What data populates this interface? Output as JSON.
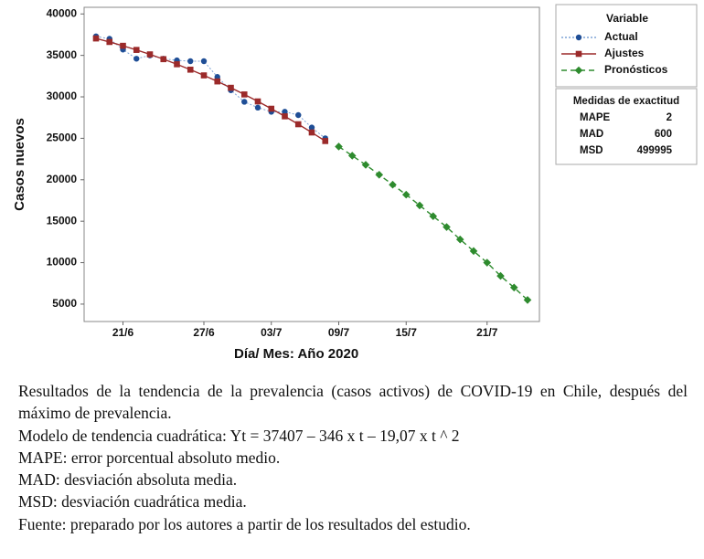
{
  "chart_data": {
    "type": "line",
    "x_label": "Día/ Mes: Año 2020",
    "y_label": "Casos nuevos",
    "categories": [
      null,
      null,
      "21/6",
      null,
      null,
      null,
      null,
      null,
      "27/6",
      null,
      null,
      null,
      null,
      "03/7",
      null,
      null,
      null,
      null,
      "09/7",
      null,
      null,
      null,
      null,
      "15/7",
      null,
      null,
      null,
      null,
      null,
      "21/7",
      null,
      null,
      null
    ],
    "ylim": [
      2900,
      40800
    ],
    "yticks": [
      5000,
      10000,
      15000,
      20000,
      25000,
      30000,
      35000,
      40000
    ],
    "grid": false,
    "legend_title": "Variable",
    "series": [
      {
        "name": "Actual",
        "color": "#1f4e96",
        "marker": "circle",
        "line": "dotted",
        "values": [
          37300,
          37000,
          35700,
          34600,
          35000,
          34600,
          34400,
          34300,
          34300,
          32400,
          30800,
          29400,
          28700,
          28200,
          28200,
          27800,
          26300,
          25000,
          null,
          null,
          null,
          null,
          null,
          null,
          null,
          null,
          null,
          null,
          null,
          null,
          null,
          null,
          null
        ]
      },
      {
        "name": "Ajustes",
        "color": "#9b2a2a",
        "marker": "square",
        "line": "solid",
        "values": [
          37042,
          36619,
          36158,
          35659,
          35124,
          34545,
          33931,
          33279,
          32589,
          31860,
          31094,
          30290,
          29448,
          28568,
          27650,
          26695,
          25702,
          24670,
          null,
          null,
          null,
          null,
          null,
          null,
          null,
          null,
          null,
          null,
          null,
          null,
          null,
          null,
          null
        ]
      },
      {
        "name": "Pronósticos",
        "color": "#2e8b2e",
        "marker": "diamond",
        "line": "dashed",
        "values": [
          null,
          null,
          null,
          null,
          null,
          null,
          null,
          null,
          null,
          null,
          null,
          null,
          null,
          null,
          null,
          null,
          null,
          null,
          24000,
          22900,
          21800,
          20600,
          19400,
          18200,
          16900,
          15600,
          14300,
          12800,
          11400,
          10000,
          8400,
          7000,
          5500
        ]
      }
    ]
  },
  "accuracy": {
    "title": "Medidas de exactitud",
    "rows": [
      {
        "name": "MAPE",
        "value": 2
      },
      {
        "name": "MAD",
        "value": 600
      },
      {
        "name": "MSD",
        "value": 499995
      }
    ]
  },
  "caption": [
    "Resultados de la tendencia de la prevalencia (casos activos) de COVID-19 en Chile, después del máximo de prevalencia.",
    "Modelo de tendencia cuadrática: Yt = 37407 – 346 x t – 19,07 x t ^ 2",
    "MAPE: error porcentual absoluto medio.",
    "MAD: desviación absoluta media.",
    "MSD: desviación cuadrática media.",
    "Fuente: preparado por los autores a partir de los resultados del estudio."
  ]
}
